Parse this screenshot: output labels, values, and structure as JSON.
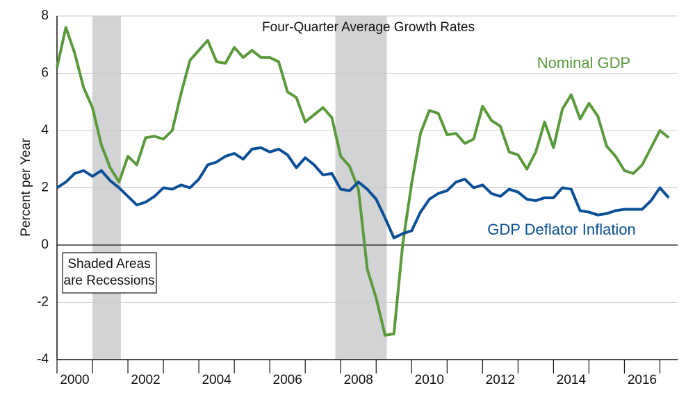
{
  "chart_data": {
    "type": "line",
    "title": "Four-Quarter Average Growth Rates",
    "ylabel": "Percent per Year",
    "annotation": [
      "Shaded Areas",
      "are Recessions"
    ],
    "x": [
      2000,
      2000.25,
      2000.5,
      2000.75,
      2001,
      2001.25,
      2001.5,
      2001.75,
      2002,
      2002.25,
      2002.5,
      2002.75,
      2003,
      2003.25,
      2003.5,
      2003.75,
      2004,
      2004.25,
      2004.5,
      2004.75,
      2005,
      2005.25,
      2005.5,
      2005.75,
      2006,
      2006.25,
      2006.5,
      2006.75,
      2007,
      2007.25,
      2007.5,
      2007.75,
      2008,
      2008.25,
      2008.5,
      2008.75,
      2009,
      2009.25,
      2009.5,
      2009.75,
      2010,
      2010.25,
      2010.5,
      2010.75,
      2011,
      2011.25,
      2011.5,
      2011.75,
      2012,
      2012.25,
      2012.5,
      2012.75,
      2013,
      2013.25,
      2013.5,
      2013.75,
      2014,
      2014.25,
      2014.5,
      2014.75,
      2015,
      2015.25,
      2015.5,
      2015.75,
      2016,
      2016.25,
      2016.5,
      2016.75,
      2017,
      2017.25
    ],
    "series": [
      {
        "name": "Nominal GDP",
        "color": "#5b9a3c",
        "values": [
          6.2,
          7.6,
          6.7,
          5.5,
          4.8,
          3.5,
          2.7,
          2.2,
          3.1,
          2.8,
          3.75,
          3.8,
          3.7,
          4.0,
          5.3,
          6.45,
          6.8,
          7.15,
          6.4,
          6.35,
          6.9,
          6.55,
          6.8,
          6.55,
          6.55,
          6.4,
          5.35,
          5.15,
          4.3,
          4.55,
          4.8,
          4.45,
          3.1,
          2.75,
          1.95,
          -0.85,
          -1.85,
          -3.15,
          -3.1,
          0.05,
          2.15,
          3.9,
          4.7,
          4.6,
          3.85,
          3.9,
          3.55,
          3.7,
          4.85,
          4.35,
          4.15,
          3.25,
          3.15,
          2.65,
          3.25,
          4.3,
          3.4,
          4.75,
          5.25,
          4.4,
          4.95,
          4.5,
          3.45,
          3.1,
          2.6,
          2.5,
          2.8,
          3.4,
          4.0,
          3.75
        ]
      },
      {
        "name": "GDP Deflator Inflation",
        "color": "#0a4f96",
        "values": [
          2.0,
          2.2,
          2.5,
          2.6,
          2.4,
          2.6,
          2.25,
          2.0,
          1.7,
          1.4,
          1.5,
          1.7,
          2.0,
          1.95,
          2.1,
          2.0,
          2.3,
          2.8,
          2.9,
          3.1,
          3.2,
          3.0,
          3.35,
          3.4,
          3.25,
          3.35,
          3.15,
          2.7,
          3.05,
          2.8,
          2.45,
          2.5,
          1.95,
          1.9,
          2.2,
          1.95,
          1.6,
          0.95,
          0.25,
          0.4,
          0.5,
          1.15,
          1.6,
          1.8,
          1.9,
          2.2,
          2.3,
          2.0,
          2.1,
          1.8,
          1.7,
          1.95,
          1.85,
          1.6,
          1.55,
          1.65,
          1.65,
          2.0,
          1.95,
          1.2,
          1.15,
          1.05,
          1.1,
          1.2,
          1.25,
          1.25,
          1.25,
          1.55,
          2.0,
          1.65
        ]
      }
    ],
    "recessions": [
      [
        2001.0,
        2001.8
      ],
      [
        2007.85,
        2009.3
      ]
    ],
    "recession_color": "#d1d3d4",
    "xlim": [
      2000,
      2017.5
    ],
    "xticks": [
      2000,
      2002,
      2004,
      2006,
      2008,
      2010,
      2012,
      2014,
      2016
    ],
    "ylim": [
      -4,
      8
    ],
    "yticks": [
      -4,
      -2,
      0,
      2,
      4,
      6,
      8
    ],
    "grid": true
  }
}
